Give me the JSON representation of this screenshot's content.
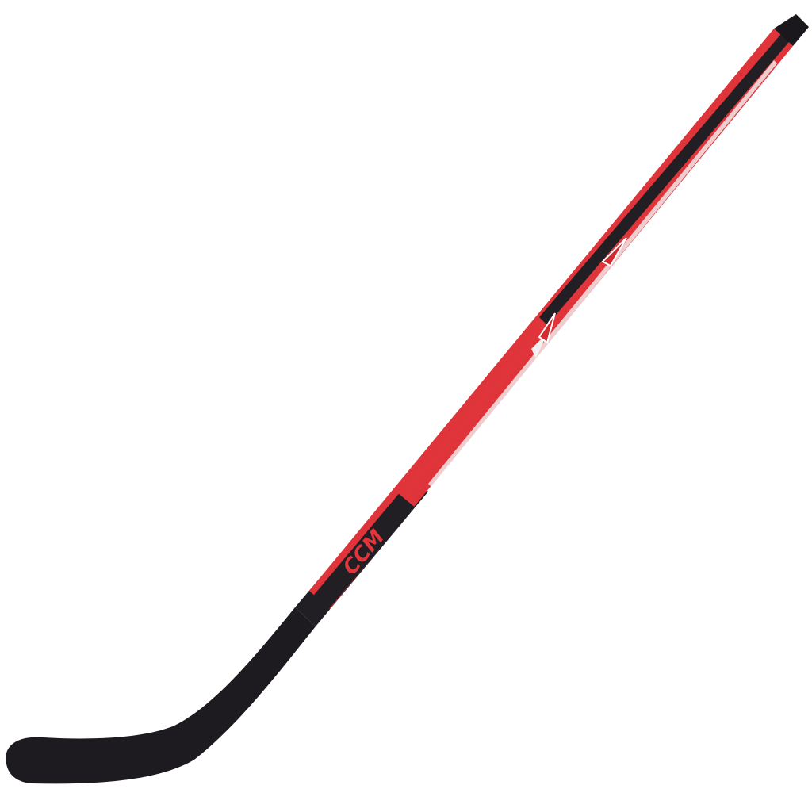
{
  "product": {
    "name_logo": "CCM",
    "colors": {
      "blade": "#1e1b20",
      "shaft_red": "#d42a2f",
      "shaft_black": "#221f24",
      "accent_white": "#f2f2f2"
    }
  }
}
